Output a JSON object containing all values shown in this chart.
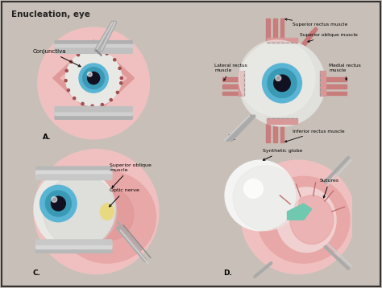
{
  "title": "Enucleation, eye",
  "title_fontsize": 7.5,
  "background_color": "#c8c0b8",
  "panel_bg": "#e8e0d8",
  "border_color": "#222222",
  "conjunctiva_label": "Conjunctiva",
  "superior_rectus": "Superior rectus muscle",
  "superior_oblique": "Superior oblique muscle",
  "lateral_rectus": "Lateral rectus\nmuscle",
  "medial_rectus": "Medial rectus\nmuscle",
  "inferior_rectus": "Inferior rectus muscle",
  "superior_oblique_c": "Superior oblique\nmuscle",
  "optic_nerve": "Optic nerve",
  "synthetic_globe": "Synthetic globe",
  "sutures": "Sutures",
  "colors": {
    "iris_blue": "#5ab5d5",
    "iris_mid": "#3a9ab5",
    "pupil": "#111122",
    "muscle_pink": "#c87878",
    "muscle_light": "#d89898",
    "skin_pink": "#e8a8a8",
    "skin_light": "#f0c8c8",
    "skin_deep": "#d08080",
    "eyeball_white": "#e8e8e4",
    "eyeball_gray": "#d0d0cc",
    "instrument_gray": "#aaaaaa",
    "instrument_light": "#cccccc",
    "instrument_dark": "#888888",
    "synthetic_white": "#f4f4f4",
    "suture_teal": "#70c8b0",
    "optic_yellow": "#e8d880",
    "conjunctiva_ring": "#a05050",
    "pink_bg": "#f0c0c0",
    "socket_pink": "#e09090"
  }
}
